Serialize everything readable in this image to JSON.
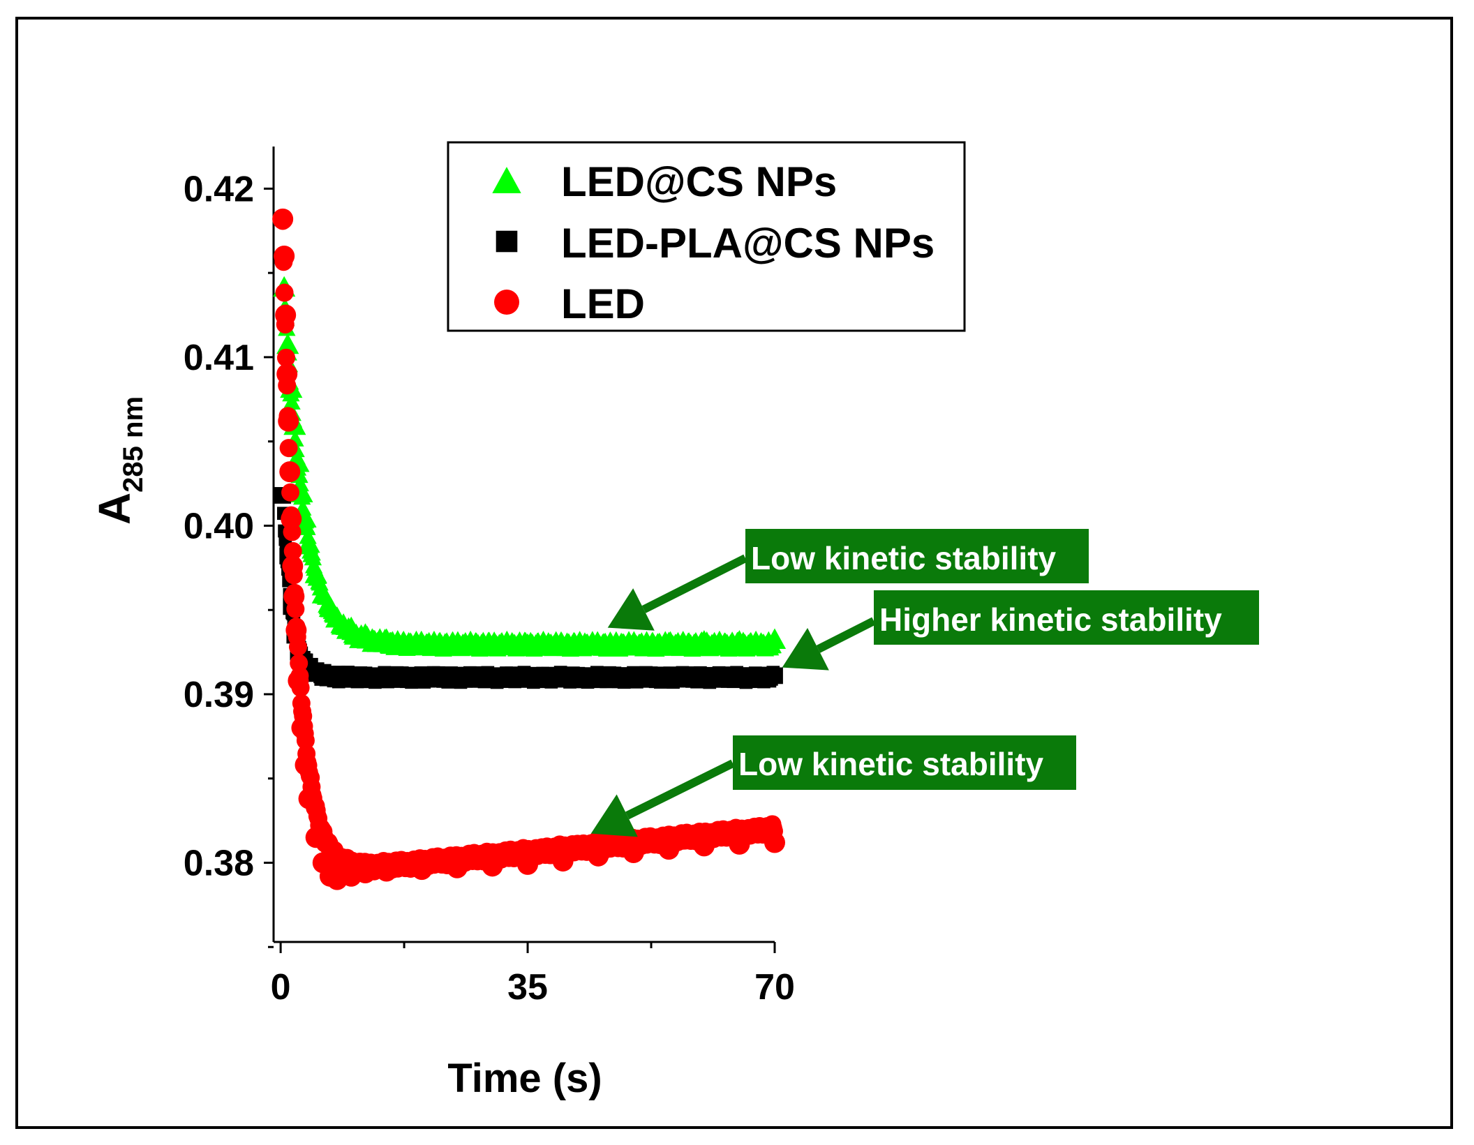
{
  "chart_data": {
    "type": "scatter",
    "title": "",
    "xlabel": "Time (s)",
    "ylabel": "A",
    "ylabel_subscript": "285 nm",
    "xlim": [
      -1,
      70
    ],
    "ylim": [
      0.3753,
      0.4225
    ],
    "x_ticks": [
      0,
      35,
      70
    ],
    "x_tick_labels": [
      "0",
      "35",
      "70"
    ],
    "y_ticks": [
      0.38,
      0.39,
      0.4,
      0.41,
      0.42
    ],
    "y_tick_labels": [
      "0.38",
      "0.39",
      "0.40",
      "0.41",
      "0.42"
    ],
    "grid": false,
    "legend_position": "top-center",
    "series": [
      {
        "name": "LED@CS NPs",
        "marker": "triangle",
        "color": "#00ff00",
        "start": 0.4142,
        "steady": 0.393,
        "decay_tau": 2.8,
        "drift_per_s": 0.0,
        "x": [
          0.5,
          1.0,
          1.5,
          2.0,
          2.5,
          3.0,
          3.5,
          4,
          5,
          6,
          7,
          8,
          10,
          12,
          15,
          20,
          25,
          30,
          35,
          40,
          45,
          50,
          55,
          60,
          65,
          70
        ],
        "values": [
          0.4142,
          0.4108,
          0.4082,
          0.406,
          0.4038,
          0.402,
          0.4005,
          0.399,
          0.3972,
          0.396,
          0.3952,
          0.3946,
          0.394,
          0.3936,
          0.3933,
          0.393,
          0.393,
          0.3929,
          0.393,
          0.3929,
          0.393,
          0.393,
          0.3931,
          0.3932,
          0.3932,
          0.3933
        ]
      },
      {
        "name": "LED-PLA@CS NPs",
        "marker": "square",
        "color": "#000000",
        "start": 0.4018,
        "steady": 0.391,
        "decay_tau": 1.3,
        "drift_per_s": 0.0,
        "x": [
          0.3,
          1.0,
          1.5,
          2.0,
          2.5,
          3.0,
          4,
          5,
          6,
          8,
          10,
          15,
          20,
          25,
          30,
          35,
          40,
          45,
          50,
          55,
          60,
          65,
          70
        ],
        "values": [
          0.4018,
          0.3982,
          0.3952,
          0.3935,
          0.3925,
          0.392,
          0.3916,
          0.3914,
          0.3913,
          0.3912,
          0.3911,
          0.391,
          0.391,
          0.391,
          0.391,
          0.391,
          0.391,
          0.391,
          0.3911,
          0.3911,
          0.3911,
          0.3911,
          0.3911
        ]
      },
      {
        "name": "LED",
        "marker": "circle",
        "color": "#ff0000",
        "start": 0.4182,
        "steady": 0.3792,
        "decay_tau": 2.0,
        "drift_per_s": 4e-05,
        "x": [
          0.3,
          0.5,
          0.7,
          0.9,
          1.1,
          1.3,
          1.5,
          1.7,
          1.9,
          2.2,
          2.5,
          3.0,
          3.5,
          4,
          5,
          6,
          7,
          8,
          10,
          12,
          15,
          20,
          25,
          30,
          35,
          40,
          45,
          50,
          55,
          60,
          65,
          70
        ],
        "values": [
          0.4182,
          0.416,
          0.4125,
          0.409,
          0.4062,
          0.4032,
          0.4004,
          0.3976,
          0.3958,
          0.3938,
          0.3908,
          0.388,
          0.3858,
          0.3838,
          0.3815,
          0.38,
          0.3792,
          0.379,
          0.3792,
          0.3794,
          0.3795,
          0.3796,
          0.3797,
          0.3798,
          0.3799,
          0.3801,
          0.3804,
          0.3806,
          0.3808,
          0.381,
          0.3811,
          0.3812
        ]
      }
    ],
    "annotations": [
      {
        "text": "Low kinetic stability",
        "target_series": "LED@CS NPs",
        "target_x": 45,
        "target_y": 0.3926
      },
      {
        "text": "Higher kinetic stability",
        "target_series": "LED-PLA@CS NPs",
        "target_x": 70,
        "target_y": 0.3911
      },
      {
        "text": "Low kinetic stability",
        "target_series": "LED",
        "target_x": 43,
        "target_y": 0.3802
      }
    ],
    "colors": {
      "annotation_bg": "#0a7a0a",
      "annotation_text": "#ffffff",
      "arrow": "#0a7a0a"
    }
  }
}
